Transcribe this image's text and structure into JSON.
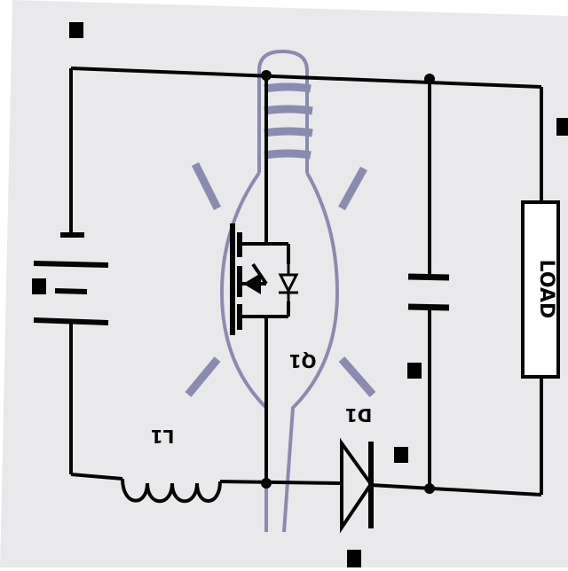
{
  "diagram": {
    "labels": {
      "inductor": "L1",
      "transistor": "Q1",
      "diode": "D1",
      "load": "LOAD"
    },
    "colors": {
      "paper": "#e9e9ec",
      "ink": "#050505",
      "bulb": "#6c6c9c"
    },
    "icons": [
      "light-bulb-icon"
    ]
  }
}
